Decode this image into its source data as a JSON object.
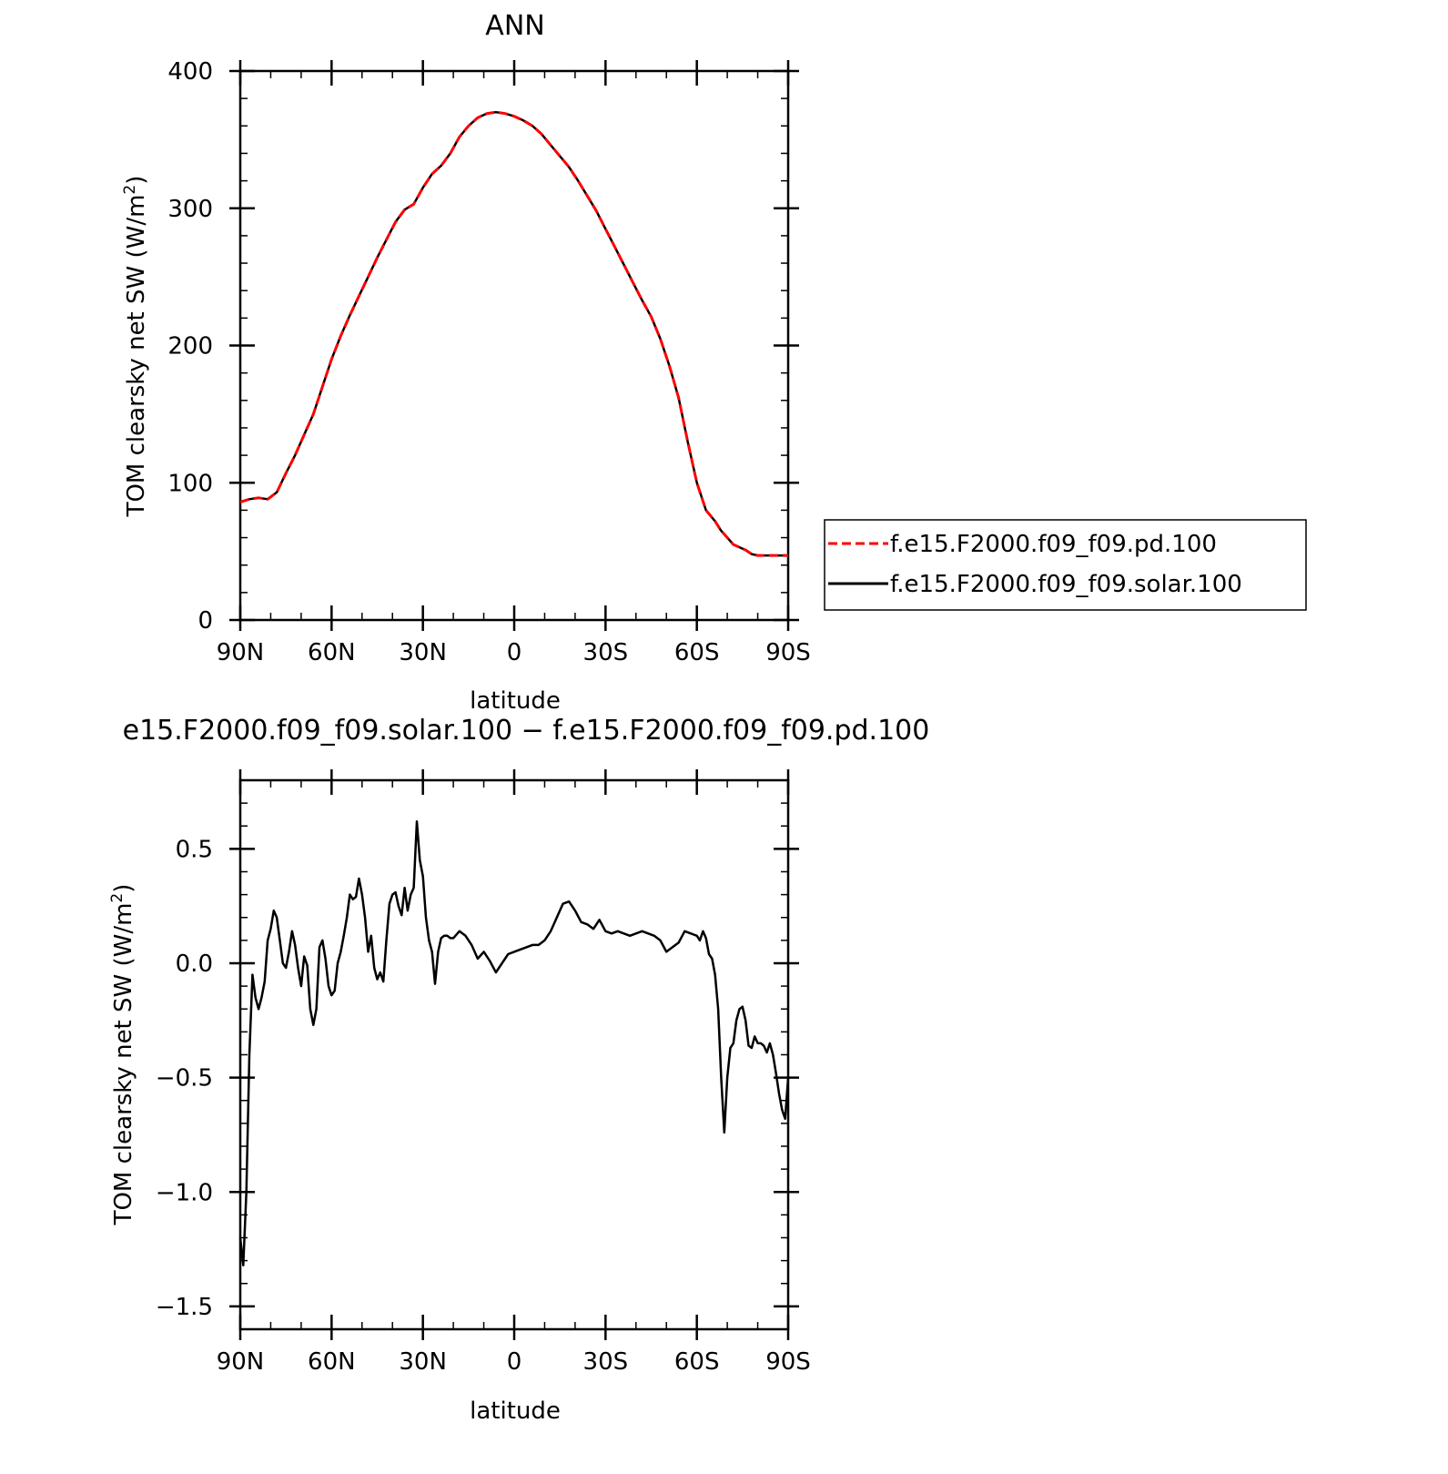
{
  "chart_data": [
    {
      "type": "line",
      "title": "ANN",
      "xlabel": "latitude",
      "ylabel": "TOM clearsky net SW (W/m²)",
      "ylabel_main": "TOM clearsky net SW (W/m",
      "ylabel_sup": "2",
      "ylabel_tail": ")",
      "xlim": [
        90,
        -90
      ],
      "ylim": [
        0,
        400
      ],
      "x_ticks": [
        90,
        60,
        30,
        0,
        -30,
        -60,
        -90
      ],
      "x_tick_labels": [
        "90N",
        "60N",
        "30N",
        "0",
        "30S",
        "60S",
        "90S"
      ],
      "y_ticks": [
        0,
        100,
        200,
        300,
        400
      ],
      "y_tick_labels": [
        "0",
        "100",
        "200",
        "300",
        "400"
      ],
      "legend_position": "right",
      "series": [
        {
          "name": "f.e15.F2000.f09_f09.pd.100",
          "color": "#ff0000",
          "dash": "dashed",
          "x": [
            90,
            87,
            84,
            81,
            78,
            75,
            72,
            69,
            66,
            63,
            60,
            57,
            54,
            51,
            48,
            45,
            42,
            39,
            36,
            33,
            30,
            27,
            24,
            21,
            18,
            15,
            12,
            9,
            6,
            3,
            0,
            -3,
            -6,
            -9,
            -12,
            -15,
            -18,
            -21,
            -24,
            -27,
            -30,
            -33,
            -36,
            -39,
            -42,
            -45,
            -48,
            -51,
            -54,
            -57,
            -60,
            -63,
            -66,
            -68,
            -70,
            -72,
            -74,
            -76,
            -78,
            -80,
            -82,
            -84,
            -86,
            -88,
            -90
          ],
          "y": [
            86,
            88,
            89,
            88,
            93,
            107,
            120,
            135,
            150,
            170,
            190,
            207,
            222,
            236,
            250,
            264,
            277,
            290,
            299,
            303,
            315,
            325,
            331,
            340,
            352,
            360,
            366,
            369,
            370,
            369,
            367,
            364,
            360,
            354,
            346,
            338,
            330,
            320,
            309,
            298,
            285,
            272,
            259,
            246,
            233,
            221,
            205,
            185,
            162,
            130,
            100,
            80,
            72,
            65,
            60,
            55,
            53,
            51,
            48,
            47,
            47,
            47,
            47,
            47,
            47
          ]
        },
        {
          "name": "f.e15.F2000.f09_f09.solar.100",
          "color": "#000000",
          "dash": "solid",
          "x": [
            90,
            87,
            84,
            81,
            78,
            75,
            72,
            69,
            66,
            63,
            60,
            57,
            54,
            51,
            48,
            45,
            42,
            39,
            36,
            33,
            30,
            27,
            24,
            21,
            18,
            15,
            12,
            9,
            6,
            3,
            0,
            -3,
            -6,
            -9,
            -12,
            -15,
            -18,
            -21,
            -24,
            -27,
            -30,
            -33,
            -36,
            -39,
            -42,
            -45,
            -48,
            -51,
            -54,
            -57,
            -60,
            -63,
            -66,
            -68,
            -70,
            -72,
            -74,
            -76,
            -78,
            -80,
            -82,
            -84,
            -86,
            -88,
            -90
          ],
          "y": [
            86,
            88,
            89,
            88,
            93,
            107,
            120,
            135,
            150,
            170,
            190,
            207,
            222,
            236,
            250,
            264,
            277,
            290,
            299,
            303,
            315,
            325,
            331,
            340,
            352,
            360,
            366,
            369,
            370,
            369,
            367,
            364,
            360,
            354,
            346,
            338,
            330,
            320,
            309,
            298,
            285,
            272,
            259,
            246,
            233,
            221,
            205,
            185,
            162,
            130,
            100,
            80,
            72,
            65,
            60,
            55,
            53,
            51,
            48,
            47,
            47,
            47,
            47,
            47,
            47
          ]
        }
      ]
    },
    {
      "type": "line",
      "title": "e15.F2000.f09_f09.solar.100 − f.e15.F2000.f09_f09.pd.100",
      "xlabel": "latitude",
      "ylabel": "TOM clearsky net SW (W/m²)",
      "ylabel_main": "TOM clearsky net SW (W/m",
      "ylabel_sup": "2",
      "ylabel_tail": ")",
      "xlim": [
        90,
        -90
      ],
      "ylim": [
        -1.6,
        0.8
      ],
      "x_ticks": [
        90,
        60,
        30,
        0,
        -30,
        -60,
        -90
      ],
      "x_tick_labels": [
        "90N",
        "60N",
        "30N",
        "0",
        "30S",
        "60S",
        "90S"
      ],
      "y_ticks": [
        0.5,
        0.0,
        -0.5,
        -1.0,
        -1.5
      ],
      "y_tick_labels": [
        "0.5",
        "0.0",
        "−0.5",
        "−1.0",
        "−1.5"
      ],
      "series": [
        {
          "color": "#000000",
          "dash": "solid",
          "x": [
            90,
            89,
            88,
            87,
            86,
            85,
            84,
            83,
            82,
            81,
            80,
            79,
            78,
            77,
            76,
            75,
            74,
            73,
            72,
            71,
            70,
            69,
            68,
            67,
            66,
            65,
            64,
            63,
            62,
            61,
            60,
            59,
            58,
            57,
            56,
            55,
            54,
            53,
            52,
            51,
            50,
            49,
            48,
            47,
            46,
            45,
            44,
            43,
            42,
            41,
            40,
            39,
            38,
            37,
            36,
            35,
            34,
            33,
            32,
            31,
            30,
            29,
            28,
            27,
            26,
            25,
            24,
            23,
            22,
            21,
            20,
            18,
            16,
            14,
            12,
            10,
            8,
            6,
            4,
            2,
            0,
            -2,
            -4,
            -6,
            -8,
            -10,
            -12,
            -14,
            -16,
            -18,
            -20,
            -22,
            -24,
            -26,
            -28,
            -30,
            -32,
            -34,
            -36,
            -38,
            -40,
            -42,
            -44,
            -46,
            -48,
            -50,
            -52,
            -54,
            -56,
            -58,
            -60,
            -61,
            -62,
            -63,
            -64,
            -65,
            -66,
            -67,
            -68,
            -69,
            -70,
            -71,
            -72,
            -73,
            -74,
            -75,
            -76,
            -77,
            -78,
            -79,
            -80,
            -81,
            -82,
            -83,
            -84,
            -85,
            -86,
            -87,
            -88,
            -89,
            -90
          ],
          "y": [
            -1.2,
            -1.32,
            -1.0,
            -0.4,
            -0.05,
            -0.15,
            -0.2,
            -0.15,
            -0.08,
            0.1,
            0.15,
            0.23,
            0.2,
            0.1,
            0.0,
            -0.02,
            0.05,
            0.14,
            0.08,
            -0.02,
            -0.1,
            0.03,
            -0.01,
            -0.2,
            -0.27,
            -0.2,
            0.07,
            0.1,
            0.02,
            -0.1,
            -0.14,
            -0.12,
            0.0,
            0.05,
            0.12,
            0.2,
            0.3,
            0.28,
            0.29,
            0.37,
            0.3,
            0.2,
            0.05,
            0.12,
            -0.02,
            -0.07,
            -0.04,
            -0.08,
            0.1,
            0.26,
            0.3,
            0.31,
            0.25,
            0.21,
            0.33,
            0.23,
            0.3,
            0.33,
            0.62,
            0.45,
            0.38,
            0.2,
            0.1,
            0.05,
            -0.09,
            0.05,
            0.11,
            0.12,
            0.12,
            0.11,
            0.11,
            0.14,
            0.12,
            0.08,
            0.02,
            0.05,
            0.01,
            -0.04,
            0.0,
            0.04,
            0.05,
            0.06,
            0.07,
            0.08,
            0.08,
            0.1,
            0.14,
            0.2,
            0.26,
            0.27,
            0.23,
            0.18,
            0.17,
            0.15,
            0.19,
            0.14,
            0.13,
            0.14,
            0.13,
            0.12,
            0.13,
            0.14,
            0.13,
            0.12,
            0.1,
            0.05,
            0.07,
            0.09,
            0.14,
            0.13,
            0.12,
            0.1,
            0.14,
            0.11,
            0.04,
            0.02,
            -0.05,
            -0.2,
            -0.5,
            -0.74,
            -0.5,
            -0.37,
            -0.35,
            -0.25,
            -0.2,
            -0.19,
            -0.25,
            -0.36,
            -0.37,
            -0.32,
            -0.35,
            -0.35,
            -0.36,
            -0.39,
            -0.35,
            -0.4,
            -0.48,
            -0.57,
            -0.64,
            -0.68,
            -0.5
          ]
        }
      ]
    }
  ]
}
